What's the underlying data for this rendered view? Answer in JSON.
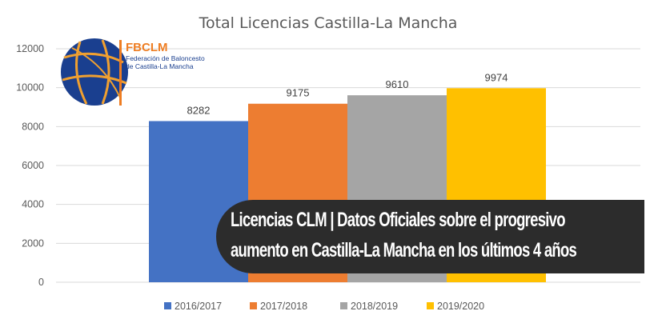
{
  "chart_data": {
    "type": "bar",
    "title": "Total Licencias Castilla-La Mancha",
    "categories": [
      ""
    ],
    "series": [
      {
        "name": "2016/2017",
        "values": [
          8282
        ],
        "color": "#4472c4"
      },
      {
        "name": "2017/2018",
        "values": [
          9175
        ],
        "color": "#ed7d31"
      },
      {
        "name": "2018/2019",
        "values": [
          9610
        ],
        "color": "#a5a5a5"
      },
      {
        "name": "2019/2020",
        "values": [
          9974
        ],
        "color": "#ffc000"
      }
    ],
    "ylim": [
      0,
      12000
    ],
    "yticks": [
      "0",
      "2000",
      "4000",
      "6000",
      "8000",
      "10000",
      "12000"
    ],
    "xlabel": "",
    "ylabel": "",
    "grid": true,
    "legend": "bottom"
  },
  "logo": {
    "name": "FBCLM",
    "line1": "Federación de Baloncesto",
    "line2": "de Castilla-La Mancha",
    "colors": {
      "ball": "#1a3f8f",
      "seams": "#f0a030"
    }
  },
  "banner": {
    "line1": "Licencias CLM  | Datos Oficiales sobre el progresivo",
    "line2": "aumento en Castilla-La Mancha en los últimos 4 años"
  }
}
